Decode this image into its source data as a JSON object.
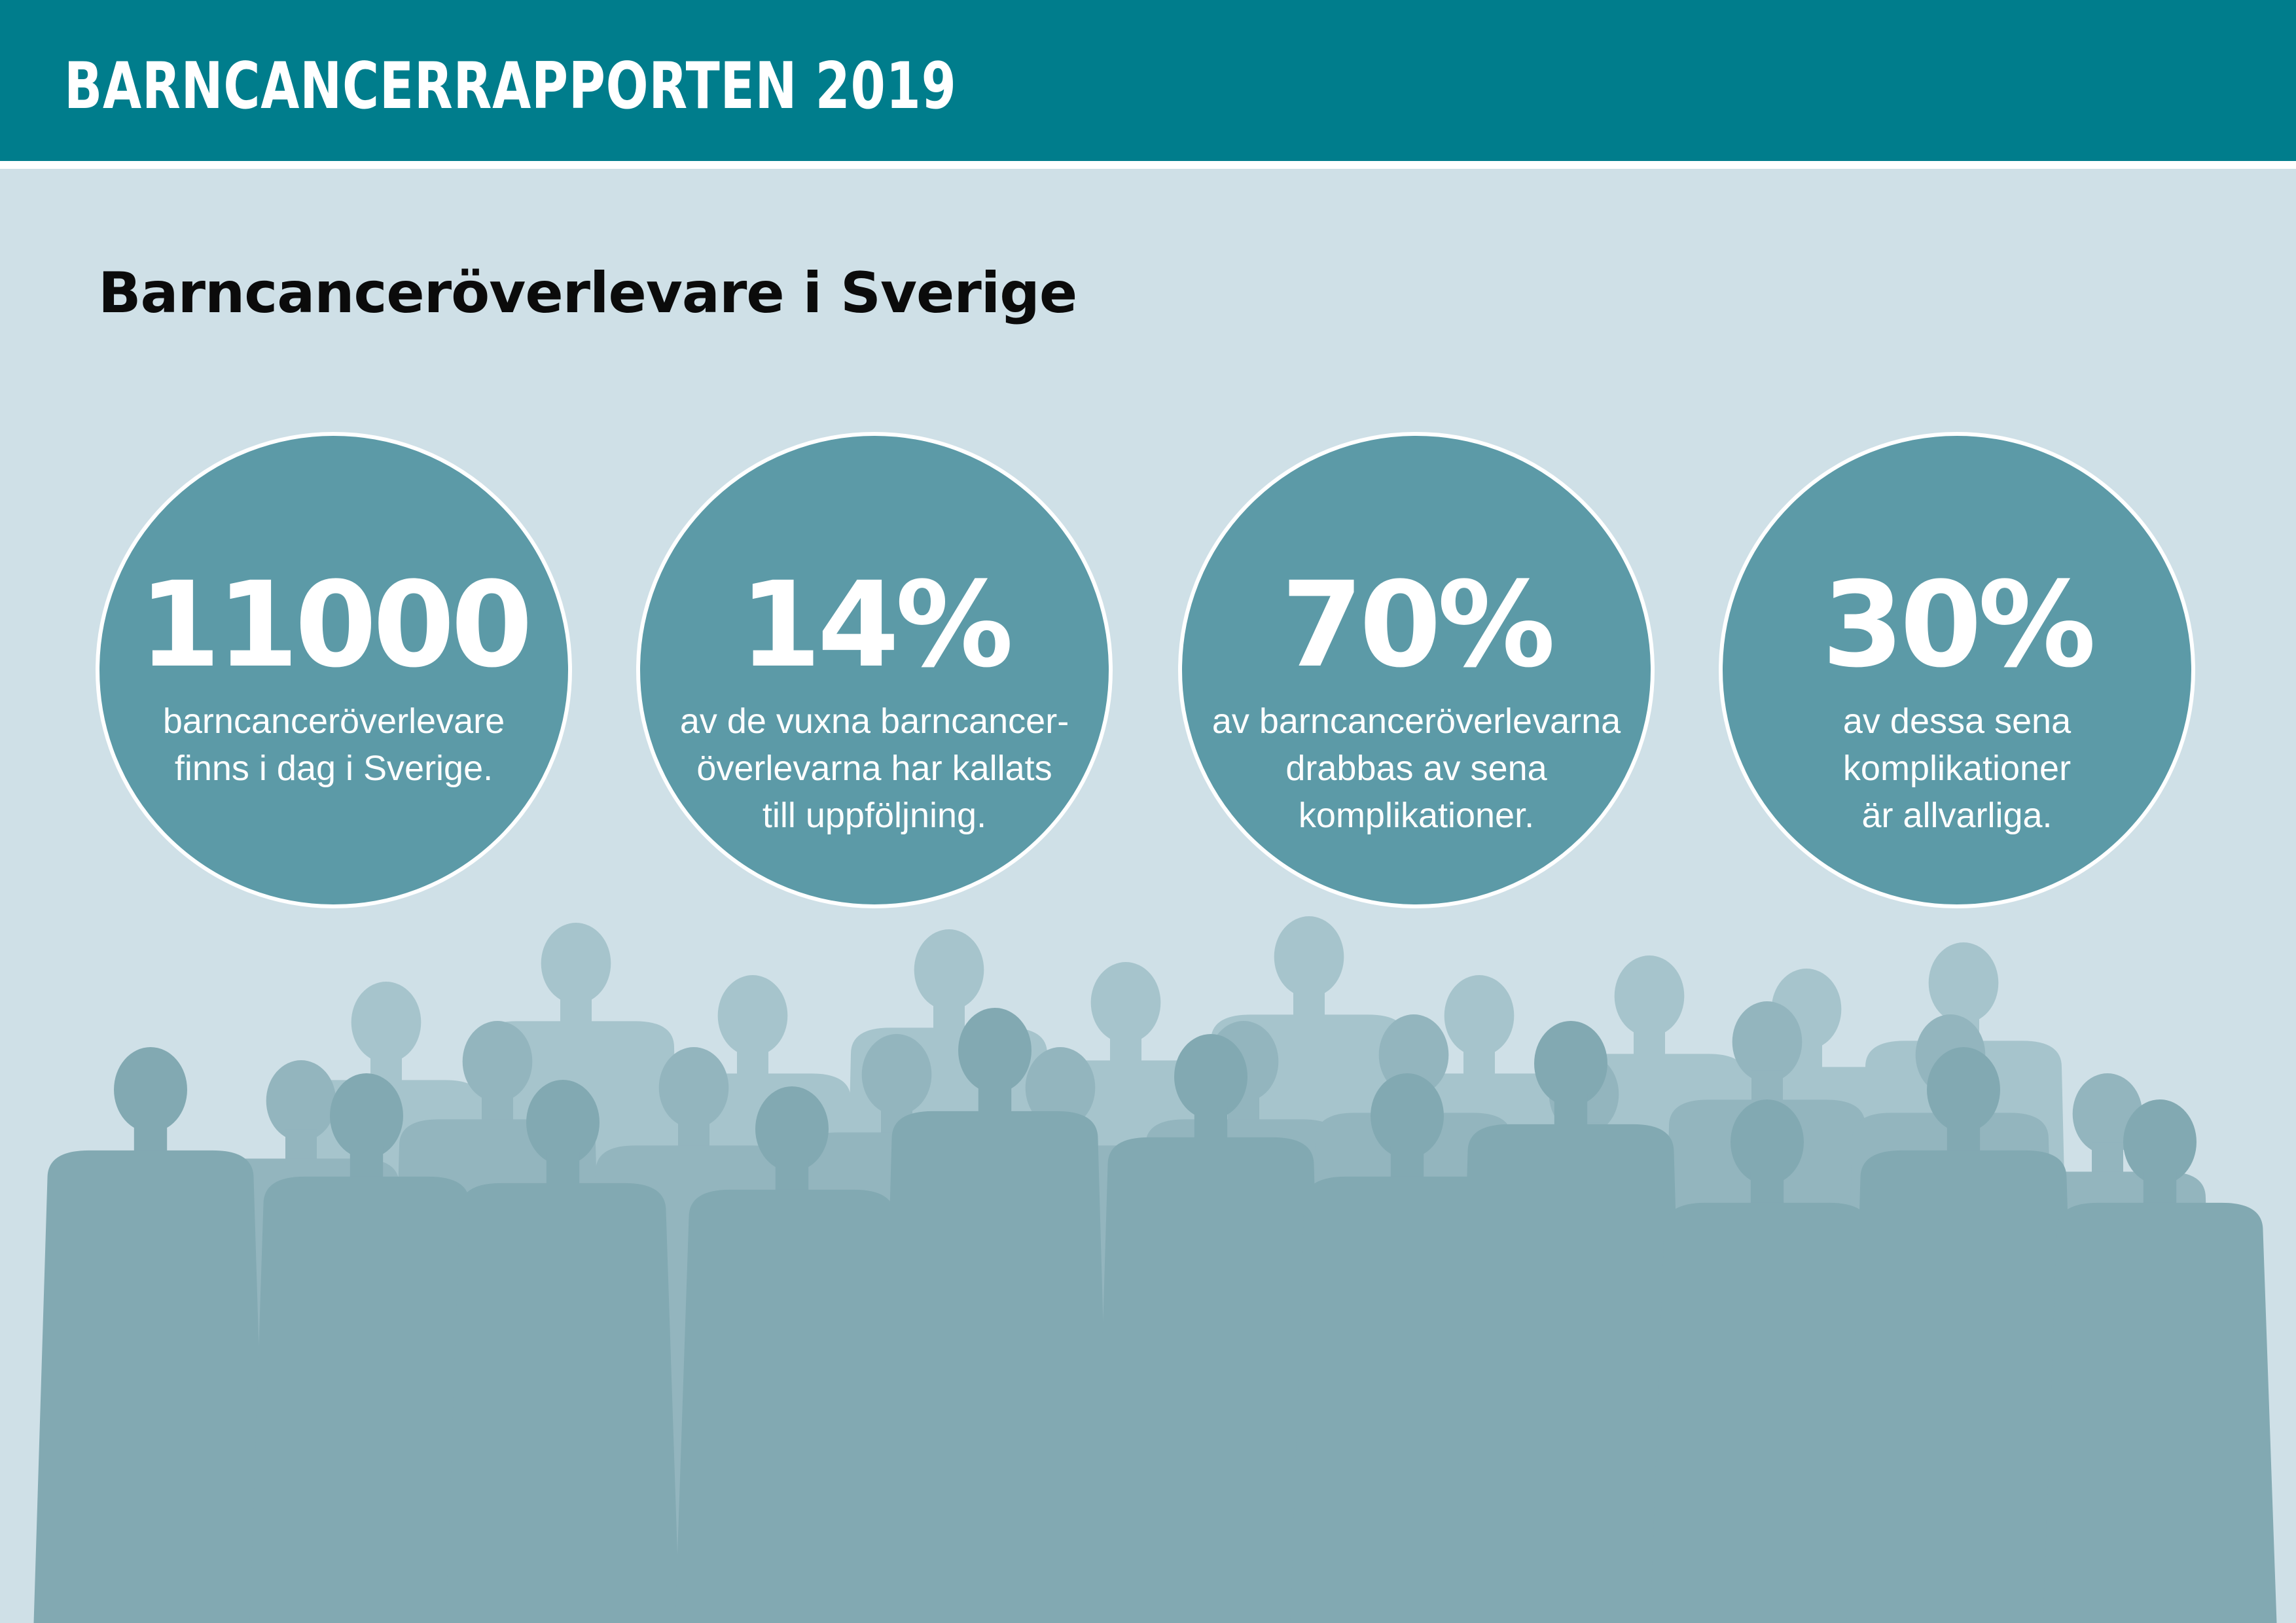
{
  "header": {
    "title": "BARNCANCERRAPPORTEN 2019"
  },
  "page_title": "Barncanceröverlevare i Sverige",
  "stats": [
    {
      "value": "11000",
      "description": "barncanceröverlevare\nfinns i dag i Sverige."
    },
    {
      "value": "14%",
      "description": "av de vuxna barncancer-\növerlevarna har kallats\ntill uppföljning."
    },
    {
      "value": "70%",
      "description": "av barncanceröverlevarna\ndrabbas av sena\nkomplikationer."
    },
    {
      "value": "30%",
      "description": "av dessa sena\nkomplikationer\när allvarliga."
    }
  ],
  "colors": {
    "header_background": "#007d8c",
    "page_background": "#cfe0e7",
    "circle_fill": "#5c9aa7",
    "crowd_back": "#a6c4cc",
    "crowd_mid": "#93b5be",
    "crowd_front": "#82a9b2"
  },
  "illustration": {
    "name": "crowd-silhouette"
  }
}
